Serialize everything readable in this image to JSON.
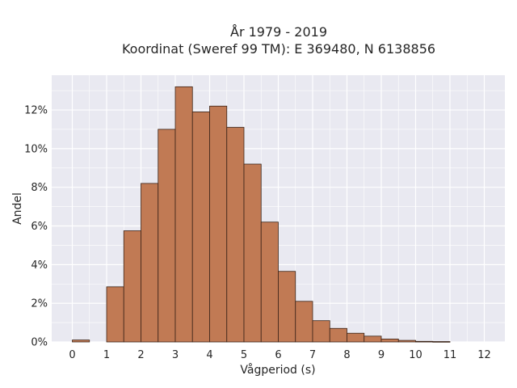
{
  "chart_data": {
    "type": "bar",
    "title_line1": "År 1979 - 2019",
    "title_line2": "Koordinat (Sweref 99 TM): E 369480, N 6138856",
    "xlabel": "Vågperiod (s)",
    "ylabel": "Andel",
    "x_ticks": [
      "0",
      "1",
      "2",
      "3",
      "4",
      "5",
      "6",
      "7",
      "8",
      "9",
      "10",
      "11",
      "12"
    ],
    "y_ticks": [
      "0%",
      "2%",
      "4%",
      "6%",
      "8%",
      "10%",
      "12%"
    ],
    "xlim": [
      -0.6,
      12.6
    ],
    "ylim": [
      0,
      13.8
    ],
    "bin_width": 0.5,
    "bin_starts": [
      0,
      1,
      1.5,
      2,
      2.5,
      3,
      3.5,
      4,
      4.5,
      5,
      5.5,
      6,
      6.5,
      7,
      7.5,
      8,
      8.5,
      9,
      9.5,
      10,
      10.5
    ],
    "values": [
      0.1,
      2.85,
      5.75,
      8.2,
      11.0,
      13.2,
      11.9,
      12.2,
      11.1,
      9.2,
      6.2,
      3.65,
      2.1,
      1.1,
      0.7,
      0.45,
      0.3,
      0.15,
      0.08,
      0.03,
      0.02
    ],
    "bar_color": "#c17a54",
    "edge_color": "#3b2418",
    "background": "#e9e9f1",
    "grid": true
  }
}
